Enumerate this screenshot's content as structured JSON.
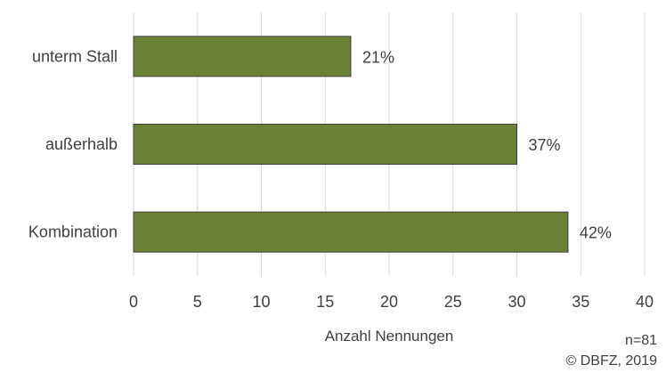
{
  "chart_data": {
    "type": "bar",
    "orientation": "horizontal",
    "categories": [
      "unterm Stall",
      "außerhalb",
      "Kombination"
    ],
    "values": [
      17,
      30,
      34
    ],
    "data_labels": [
      "21%",
      "37%",
      "42%"
    ],
    "xlabel": "Anzahl Nennungen",
    "ylabel": "",
    "xlim": [
      0,
      40
    ],
    "x_ticks": [
      "0",
      "5",
      "10",
      "15",
      "20",
      "25",
      "30",
      "35",
      "40"
    ],
    "grid": "vertical",
    "bar_color": "#6b8136",
    "bar_edge_color": "#3f3f3f",
    "grid_color": "#d9d9d9"
  },
  "notes": {
    "sample_size": "n=81",
    "copyright": "© DBFZ, 2019"
  }
}
